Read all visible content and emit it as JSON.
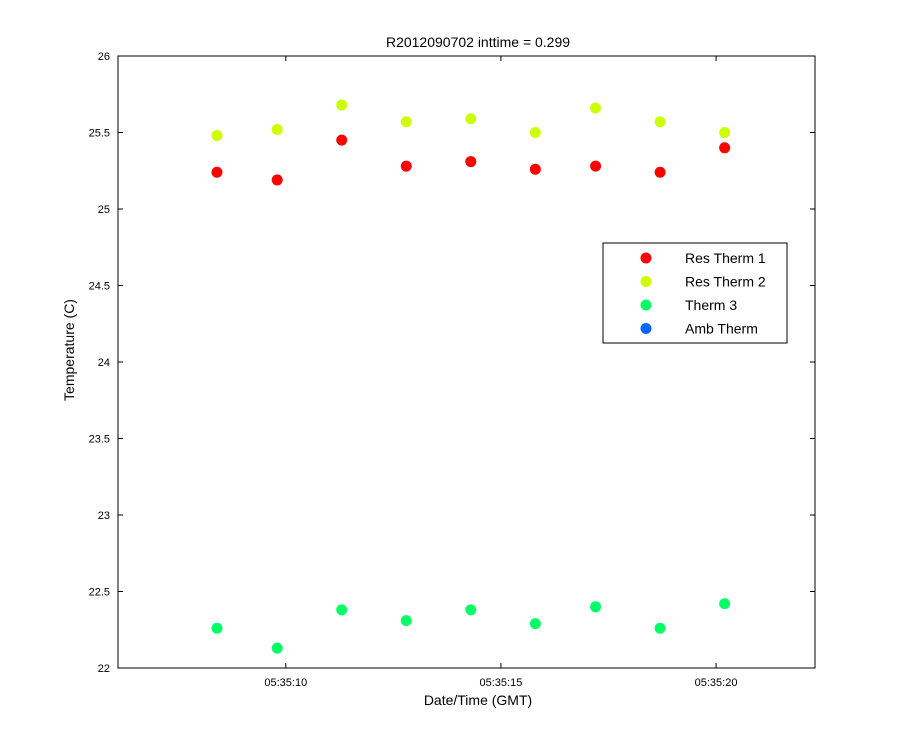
{
  "chart_data": {
    "type": "scatter",
    "title": "R2012090702 inttime = 0.299",
    "xlabel": "Date/Time (GMT)",
    "ylabel": "Temperature (C)",
    "xlim": [
      "05:35:06.1",
      "05:35:22.3"
    ],
    "ylim": [
      22,
      26
    ],
    "x_tick_labels": [
      "05:35:10",
      "05:35:15",
      "05:35:20"
    ],
    "y_tick_labels": [
      "22",
      "22.5",
      "23",
      "23.5",
      "24",
      "24.5",
      "25",
      "25.5",
      "26"
    ],
    "x": [
      "05:35:08.4",
      "05:35:09.8",
      "05:35:11.3",
      "05:35:12.8",
      "05:35:14.3",
      "05:35:15.8",
      "05:35:17.2",
      "05:35:18.7",
      "05:35:20.2"
    ],
    "grid": false,
    "legend_position": "right",
    "series": [
      {
        "name": "Res Therm 1",
        "color": "#ff0000",
        "values": [
          25.24,
          25.19,
          25.45,
          25.28,
          25.31,
          25.26,
          25.28,
          25.24,
          25.4
        ]
      },
      {
        "name": "Res Therm 2",
        "color": "#ccff00",
        "values": [
          25.48,
          25.52,
          25.68,
          25.57,
          25.59,
          25.5,
          25.66,
          25.57,
          25.5
        ]
      },
      {
        "name": "Therm 3",
        "color": "#00ff66",
        "values": [
          22.26,
          22.13,
          22.38,
          22.31,
          22.38,
          22.29,
          22.4,
          22.26,
          22.42
        ]
      },
      {
        "name": "Amb Therm",
        "color": "#0066ff",
        "values": []
      }
    ]
  }
}
